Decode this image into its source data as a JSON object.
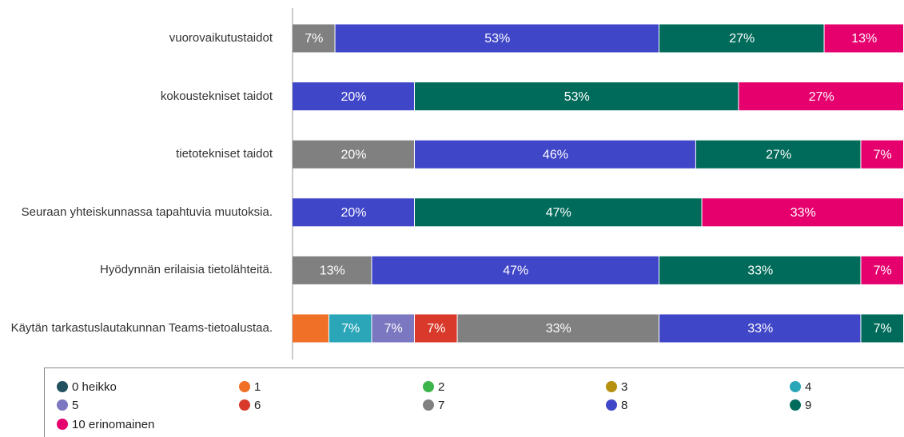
{
  "chart_data": {
    "type": "stacked_barh",
    "categories": [
      "vuorovaikutustaidot",
      "kokoustekniset taidot",
      "tietotekniset taidot",
      "Seuraan yhteiskunnassa tapahtuvia muutoksia.",
      "Hyödynnän erilaisia tietolähteitä.",
      "Käytän tarkastuslautakunnan Teams-tietoalustaa."
    ],
    "xlim": [
      0,
      100
    ],
    "series": [
      {
        "name": "0 heikko",
        "color": "#21505e",
        "values": [
          null,
          null,
          null,
          null,
          null,
          null
        ],
        "value_labels": [
          null,
          null,
          null,
          null,
          null,
          null
        ]
      },
      {
        "name": "1",
        "color": "#f07028",
        "values": [
          null,
          null,
          null,
          null,
          null,
          6
        ],
        "value_labels": [
          null,
          null,
          null,
          null,
          null,
          null
        ]
      },
      {
        "name": "2",
        "color": "#3cb54a",
        "values": [
          null,
          null,
          null,
          null,
          null,
          null
        ],
        "value_labels": [
          null,
          null,
          null,
          null,
          null,
          null
        ]
      },
      {
        "name": "3",
        "color": "#b8900f",
        "values": [
          null,
          null,
          null,
          null,
          null,
          null
        ],
        "value_labels": [
          null,
          null,
          null,
          null,
          null,
          null
        ]
      },
      {
        "name": "4",
        "color": "#2aa6b8",
        "values": [
          null,
          null,
          null,
          null,
          null,
          7
        ],
        "value_labels": [
          null,
          null,
          null,
          null,
          null,
          "7%"
        ]
      },
      {
        "name": "5",
        "color": "#7b77c0",
        "values": [
          null,
          null,
          null,
          null,
          null,
          7
        ],
        "value_labels": [
          null,
          null,
          null,
          null,
          null,
          "7%"
        ]
      },
      {
        "name": "6",
        "color": "#d9392a",
        "values": [
          null,
          null,
          null,
          null,
          null,
          7
        ],
        "value_labels": [
          null,
          null,
          null,
          null,
          null,
          "7%"
        ]
      },
      {
        "name": "7",
        "color": "#808080",
        "values": [
          7,
          null,
          20,
          null,
          13,
          33
        ],
        "value_labels": [
          "7%",
          null,
          "20%",
          null,
          "13%",
          "33%"
        ]
      },
      {
        "name": "8",
        "color": "#4046c8",
        "values": [
          53,
          20,
          46,
          20,
          47,
          33
        ],
        "value_labels": [
          "53%",
          "20%",
          "46%",
          "20%",
          "47%",
          "33%"
        ]
      },
      {
        "name": "9",
        "color": "#006b5a",
        "values": [
          27,
          53,
          27,
          47,
          33,
          7
        ],
        "value_labels": [
          "27%",
          "53%",
          "27%",
          "47%",
          "33%",
          "7%"
        ]
      },
      {
        "name": "10 erinomainen",
        "color": "#e5006e",
        "values": [
          13,
          27,
          7,
          33,
          7,
          null
        ],
        "value_labels": [
          "13%",
          "27%",
          "7%",
          "33%",
          "7%",
          null
        ]
      }
    ]
  }
}
